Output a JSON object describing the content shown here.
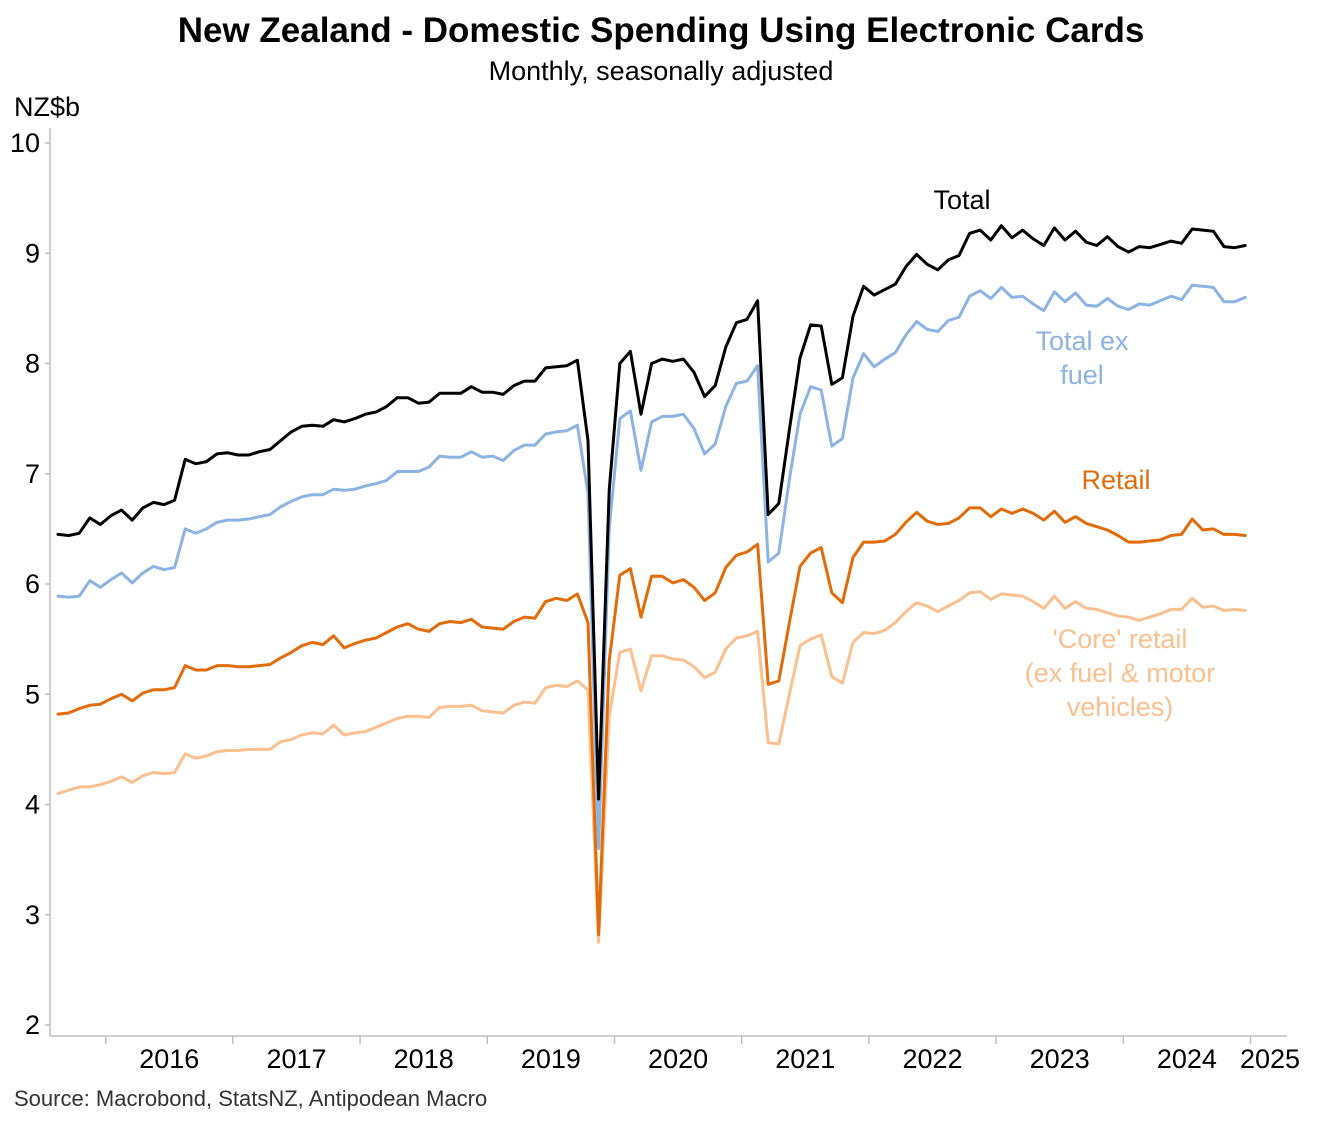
{
  "chart_data": {
    "type": "line",
    "title": "New Zealand - Domestic Spending Using Electronic Cards",
    "subtitle": "Monthly, seasonally adjusted",
    "ylabel": "NZ$b",
    "xlabel": "",
    "ylim": [
      2,
      10
    ],
    "yticks": [
      2,
      3,
      4,
      5,
      6,
      7,
      8,
      9,
      10
    ],
    "x_start": "2015-08",
    "x_tick_labels": [
      "2016",
      "2017",
      "2018",
      "2019",
      "2020",
      "2021",
      "2022",
      "2023",
      "2024",
      "2025"
    ],
    "grid": false,
    "source": "Source: Macrobond, StatsNZ, Antipodean Macro",
    "series": [
      {
        "name": "Total",
        "label_lines": [
          "Total"
        ],
        "color": "#000000",
        "values": [
          6.45,
          6.44,
          6.46,
          6.6,
          6.54,
          6.62,
          6.67,
          6.58,
          6.69,
          6.74,
          6.72,
          6.76,
          7.13,
          7.09,
          7.11,
          7.18,
          7.19,
          7.17,
          7.17,
          7.2,
          7.22,
          7.3,
          7.38,
          7.43,
          7.44,
          7.43,
          7.49,
          7.47,
          7.5,
          7.54,
          7.56,
          7.61,
          7.69,
          7.69,
          7.64,
          7.65,
          7.73,
          7.73,
          7.73,
          7.79,
          7.74,
          7.74,
          7.72,
          7.8,
          7.84,
          7.84,
          7.96,
          7.97,
          7.98,
          8.03,
          7.3,
          4.05,
          6.85,
          8.0,
          8.11,
          7.54,
          8.0,
          8.04,
          8.02,
          8.04,
          7.92,
          7.7,
          7.8,
          8.15,
          8.37,
          8.4,
          8.57,
          6.63,
          6.73,
          7.4,
          8.05,
          8.35,
          8.34,
          7.81,
          7.87,
          8.43,
          8.7,
          8.62,
          8.67,
          8.72,
          8.88,
          8.99,
          8.9,
          8.85,
          8.94,
          8.98,
          9.18,
          9.21,
          9.12,
          9.25,
          9.14,
          9.21,
          9.13,
          9.07,
          9.23,
          9.12,
          9.2,
          9.1,
          9.07,
          9.15,
          9.06,
          9.01,
          9.06,
          9.05,
          9.08,
          9.11,
          9.09,
          9.22,
          9.21,
          9.2,
          9.06,
          9.05,
          9.07
        ]
      },
      {
        "name": "Total ex fuel",
        "label_lines": [
          "Total ex",
          "fuel"
        ],
        "color": "#8DB3E2",
        "values": [
          5.89,
          5.88,
          5.89,
          6.03,
          5.97,
          6.04,
          6.1,
          6.01,
          6.1,
          6.16,
          6.13,
          6.15,
          6.5,
          6.46,
          6.5,
          6.56,
          6.58,
          6.58,
          6.59,
          6.61,
          6.63,
          6.7,
          6.75,
          6.79,
          6.81,
          6.81,
          6.86,
          6.85,
          6.86,
          6.89,
          6.91,
          6.94,
          7.02,
          7.02,
          7.02,
          7.06,
          7.16,
          7.15,
          7.15,
          7.2,
          7.15,
          7.16,
          7.12,
          7.21,
          7.26,
          7.26,
          7.36,
          7.38,
          7.39,
          7.44,
          6.82,
          3.6,
          6.5,
          7.5,
          7.57,
          7.03,
          7.47,
          7.52,
          7.52,
          7.54,
          7.41,
          7.18,
          7.27,
          7.61,
          7.82,
          7.84,
          7.98,
          6.2,
          6.28,
          6.95,
          7.54,
          7.79,
          7.76,
          7.25,
          7.32,
          7.87,
          8.09,
          7.97,
          8.04,
          8.1,
          8.26,
          8.38,
          8.31,
          8.29,
          8.39,
          8.42,
          8.61,
          8.66,
          8.59,
          8.69,
          8.6,
          8.61,
          8.54,
          8.48,
          8.65,
          8.56,
          8.64,
          8.53,
          8.52,
          8.59,
          8.52,
          8.49,
          8.54,
          8.53,
          8.57,
          8.61,
          8.58,
          8.71,
          8.7,
          8.69,
          8.56,
          8.56,
          8.6
        ]
      },
      {
        "name": "Retail",
        "label_lines": [
          "Retail"
        ],
        "color": "#E26B0A",
        "values": [
          4.82,
          4.83,
          4.87,
          4.9,
          4.91,
          4.96,
          5.0,
          4.94,
          5.01,
          5.04,
          5.04,
          5.06,
          5.26,
          5.22,
          5.22,
          5.26,
          5.26,
          5.25,
          5.25,
          5.26,
          5.27,
          5.33,
          5.38,
          5.44,
          5.47,
          5.45,
          5.53,
          5.42,
          5.46,
          5.49,
          5.51,
          5.56,
          5.61,
          5.64,
          5.59,
          5.57,
          5.64,
          5.66,
          5.65,
          5.68,
          5.61,
          5.6,
          5.59,
          5.66,
          5.7,
          5.69,
          5.84,
          5.87,
          5.85,
          5.91,
          5.65,
          2.82,
          5.3,
          6.08,
          6.14,
          5.7,
          6.07,
          6.07,
          6.01,
          6.04,
          5.97,
          5.85,
          5.92,
          6.15,
          6.26,
          6.29,
          6.36,
          5.09,
          5.12,
          5.65,
          6.16,
          6.28,
          6.33,
          5.92,
          5.83,
          6.24,
          6.38,
          6.38,
          6.39,
          6.45,
          6.56,
          6.65,
          6.57,
          6.54,
          6.55,
          6.6,
          6.69,
          6.69,
          6.61,
          6.68,
          6.64,
          6.68,
          6.64,
          6.58,
          6.66,
          6.56,
          6.61,
          6.55,
          6.52,
          6.49,
          6.44,
          6.38,
          6.38,
          6.39,
          6.4,
          6.44,
          6.45,
          6.59,
          6.49,
          6.5,
          6.45,
          6.45,
          6.44
        ]
      },
      {
        "name": "'Core' retail (ex fuel & motor vehicles)",
        "label_lines": [
          "'Core' retail",
          "(ex fuel & motor",
          "vehicles)"
        ],
        "color": "#FAC090",
        "values": [
          4.1,
          4.13,
          4.16,
          4.16,
          4.18,
          4.21,
          4.25,
          4.2,
          4.26,
          4.29,
          4.28,
          4.29,
          4.46,
          4.42,
          4.44,
          4.48,
          4.49,
          4.49,
          4.5,
          4.5,
          4.5,
          4.57,
          4.59,
          4.63,
          4.65,
          4.64,
          4.72,
          4.63,
          4.65,
          4.66,
          4.7,
          4.74,
          4.78,
          4.8,
          4.8,
          4.79,
          4.88,
          4.89,
          4.89,
          4.9,
          4.85,
          4.84,
          4.83,
          4.9,
          4.93,
          4.92,
          5.06,
          5.08,
          5.07,
          5.12,
          5.04,
          2.75,
          4.8,
          5.38,
          5.41,
          5.03,
          5.35,
          5.35,
          5.32,
          5.31,
          5.25,
          5.15,
          5.2,
          5.41,
          5.51,
          5.53,
          5.57,
          4.56,
          4.55,
          5.0,
          5.44,
          5.5,
          5.54,
          5.16,
          5.1,
          5.47,
          5.56,
          5.55,
          5.58,
          5.65,
          5.75,
          5.83,
          5.8,
          5.75,
          5.8,
          5.85,
          5.92,
          5.93,
          5.86,
          5.91,
          5.9,
          5.89,
          5.84,
          5.78,
          5.89,
          5.78,
          5.84,
          5.78,
          5.77,
          5.74,
          5.71,
          5.7,
          5.67,
          5.7,
          5.73,
          5.77,
          5.77,
          5.87,
          5.79,
          5.8,
          5.76,
          5.77,
          5.76
        ]
      }
    ]
  }
}
